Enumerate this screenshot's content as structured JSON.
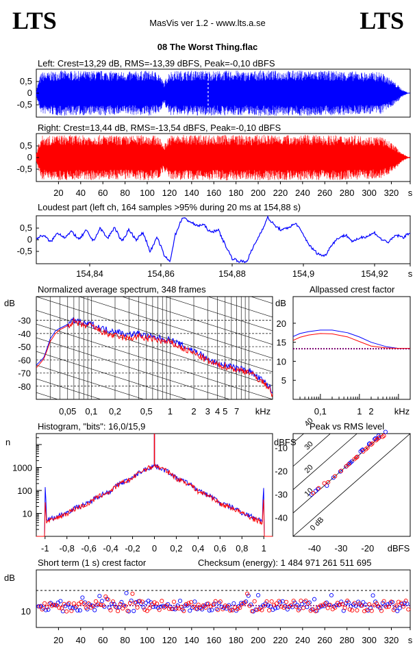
{
  "header": {
    "logo_left": "LTS",
    "logo_right": "LTS",
    "subtitle": "MasVis ver 1.2 - www.lts.a.se",
    "file_title": "08 The Worst Thing.flac"
  },
  "colors": {
    "left": "#0000ff",
    "right": "#ff0000",
    "dotted": "#7a0070"
  },
  "chart_data": [
    {
      "id": "left-waveform",
      "type": "line",
      "title": "Left: Crest=13,29 dB, RMS=-13,39 dBFS, Peak=-0,10 dBFS",
      "ylim": [
        -1,
        1
      ],
      "xlim": [
        0,
        337
      ],
      "yticks": [
        "0,5",
        "0",
        "-0,5"
      ],
      "ytick_values": [
        0.5,
        0,
        -0.5
      ],
      "marker_s": 154.88,
      "envelope": {
        "x": [
          0,
          3,
          5,
          10,
          20,
          40,
          60,
          80,
          100,
          110,
          115,
          120,
          140,
          155,
          160,
          180,
          190,
          200,
          220,
          240,
          260,
          280,
          300,
          310,
          320,
          326,
          330,
          335
        ],
        "amp": [
          0.15,
          0.7,
          0.92,
          0.9,
          0.98,
          0.95,
          0.97,
          0.92,
          0.97,
          0.92,
          0.45,
          0.95,
          0.97,
          0.98,
          0.95,
          0.98,
          0.92,
          0.98,
          0.97,
          0.98,
          0.96,
          0.95,
          0.9,
          0.92,
          0.6,
          0.35,
          0.15,
          0.02
        ]
      }
    },
    {
      "id": "right-waveform",
      "type": "line",
      "title": "Right: Crest=13,44 dB, RMS=-13,54 dBFS, Peak=-0,10 dBFS",
      "ylim": [
        -1,
        1
      ],
      "xlim": [
        0,
        337
      ],
      "yticks": [
        "0,5",
        "0",
        "-0,5"
      ],
      "ytick_values": [
        0.5,
        0,
        -0.5
      ],
      "xticks": [
        "20",
        "40",
        "60",
        "80",
        "100",
        "120",
        "140",
        "160",
        "180",
        "200",
        "220",
        "240",
        "260",
        "280",
        "300",
        "320",
        "s"
      ],
      "xtick_values": [
        20,
        40,
        60,
        80,
        100,
        120,
        140,
        160,
        180,
        200,
        220,
        240,
        260,
        280,
        300,
        320,
        337
      ],
      "envelope": {
        "x": [
          0,
          3,
          5,
          10,
          20,
          40,
          60,
          80,
          100,
          110,
          115,
          120,
          140,
          155,
          160,
          180,
          190,
          200,
          220,
          240,
          260,
          280,
          300,
          310,
          320,
          326,
          330,
          335
        ],
        "amp": [
          0.2,
          0.75,
          0.95,
          0.92,
          0.97,
          0.96,
          0.97,
          0.93,
          0.98,
          0.93,
          0.55,
          0.96,
          0.98,
          0.98,
          0.96,
          0.99,
          0.93,
          0.98,
          0.97,
          0.98,
          0.96,
          0.96,
          0.92,
          0.92,
          0.65,
          0.38,
          0.18,
          0.03
        ]
      }
    },
    {
      "id": "loudest-part",
      "type": "line",
      "title": "Loudest part (left  ch, 164 samples >95% during 20 ms at 154,88 s)",
      "xlim": [
        154.825,
        154.93
      ],
      "ylim": [
        -1,
        1
      ],
      "yticks": [
        "0,5",
        "0",
        "-0,5"
      ],
      "ytick_values": [
        0.5,
        0,
        -0.5
      ],
      "xticks": [
        "154,84",
        "154,86",
        "154,88",
        "154,9",
        "154,92",
        "s"
      ],
      "xtick_values": [
        154.84,
        154.86,
        154.88,
        154.9,
        154.92,
        154.93
      ],
      "series": [
        {
          "x": [
            154.825,
            154.827,
            154.829,
            154.831,
            154.833,
            154.835,
            154.837,
            154.839,
            154.841,
            154.843,
            154.845,
            154.847,
            154.849,
            154.851,
            154.853,
            154.855,
            154.857,
            154.859,
            154.861,
            154.8625,
            154.864,
            154.866,
            154.868,
            154.87,
            154.872,
            154.874,
            154.876,
            154.878,
            154.88,
            154.882,
            154.884,
            154.886,
            154.888,
            154.89,
            154.892,
            154.894,
            154.896,
            154.898,
            154.9,
            154.902,
            154.904,
            154.906,
            154.908,
            154.91,
            154.912,
            154.914,
            154.916,
            154.918,
            154.92,
            154.922,
            154.924,
            154.926,
            154.928,
            154.93
          ],
          "y": [
            0.05,
            0.2,
            -0.1,
            0.3,
            0.1,
            0.35,
            0.0,
            0.4,
            -0.05,
            0.5,
            0.05,
            0.55,
            -0.1,
            0.45,
            0.0,
            0.3,
            -0.5,
            0.1,
            -0.7,
            -0.95,
            0.2,
            0.95,
            0.8,
            0.6,
            0.65,
            0.3,
            0.45,
            -0.2,
            -0.8,
            -0.92,
            -0.95,
            -0.3,
            0.3,
            0.95,
            0.6,
            0.4,
            0.55,
            0.7,
            0.2,
            -0.3,
            -0.6,
            -0.7,
            -0.2,
            0.1,
            0.2,
            -0.1,
            0.1,
            0.15,
            0.3,
            0.0,
            -0.1,
            0.2,
            0.1,
            0.3
          ]
        }
      ]
    },
    {
      "id": "spectrum",
      "type": "line",
      "title": "Normalized average spectrum, 348 frames",
      "ylabel": "dB",
      "yticks": [
        "-30",
        "-40",
        "-50",
        "-60",
        "-70",
        "-80"
      ],
      "ytick_values": [
        -30,
        -40,
        -50,
        -60,
        -70,
        -80
      ],
      "ylim": [
        -90,
        -12
      ],
      "xlabel": "kHz",
      "xlim_khz": [
        0.02,
        20
      ],
      "log_x": true,
      "xticks": [
        "0,05",
        "0,1",
        "0,2",
        "0,5",
        "1",
        "2",
        "3",
        "4",
        "5",
        "7"
      ],
      "xtick_values": [
        0.05,
        0.1,
        0.2,
        0.5,
        1,
        2,
        3,
        4,
        5,
        7
      ],
      "series": [
        {
          "name": "left",
          "x": [
            0.02,
            0.025,
            0.03,
            0.035,
            0.04,
            0.05,
            0.06,
            0.07,
            0.08,
            0.1,
            0.12,
            0.15,
            0.2,
            0.25,
            0.3,
            0.4,
            0.5,
            0.6,
            0.8,
            1,
            1.5,
            2,
            2.5,
            3,
            4,
            5,
            6,
            7,
            8,
            10,
            12,
            15,
            18,
            20
          ],
          "y": [
            -64,
            -58,
            -44,
            -38,
            -36,
            -33,
            -30,
            -31,
            -33,
            -33,
            -35,
            -37,
            -38,
            -40,
            -41,
            -40,
            -42,
            -43,
            -44,
            -45,
            -50,
            -53,
            -56,
            -60,
            -63,
            -64,
            -65,
            -67,
            -67,
            -68,
            -72,
            -76,
            -80,
            -86
          ]
        },
        {
          "name": "right",
          "x": [
            0.02,
            0.025,
            0.03,
            0.035,
            0.04,
            0.05,
            0.06,
            0.07,
            0.08,
            0.1,
            0.12,
            0.15,
            0.2,
            0.25,
            0.3,
            0.4,
            0.5,
            0.6,
            0.8,
            1,
            1.5,
            2,
            2.5,
            3,
            4,
            5,
            6,
            7,
            8,
            10,
            12,
            15,
            18,
            20
          ],
          "y": [
            -66,
            -59,
            -46,
            -40,
            -37,
            -34,
            -31,
            -33,
            -34,
            -34,
            -37,
            -40,
            -42,
            -43,
            -44,
            -42,
            -44,
            -44,
            -46,
            -47,
            -52,
            -55,
            -58,
            -61,
            -64,
            -65,
            -66,
            -68,
            -68,
            -69,
            -73,
            -77,
            -81,
            -87
          ]
        }
      ]
    },
    {
      "id": "allpassed-crest",
      "type": "line",
      "title": "Allpassed crest factor",
      "ylabel": "dB",
      "yticks": [
        "20",
        "15",
        "10",
        "5"
      ],
      "ytick_values": [
        20,
        15,
        10,
        5
      ],
      "ylim": [
        0,
        27
      ],
      "xlabel": "kHz",
      "xticks": [
        "0,1",
        "1",
        "2"
      ],
      "xtick_values": [
        0.1,
        1,
        2
      ],
      "xlim_khz": [
        0.02,
        20
      ],
      "log_x": true,
      "reference_db": 13.3,
      "series": [
        {
          "name": "left",
          "x": [
            0.02,
            0.03,
            0.05,
            0.1,
            0.2,
            0.5,
            1,
            2,
            5,
            10,
            20
          ],
          "y": [
            16.5,
            17.3,
            17.8,
            18.2,
            18.2,
            17.5,
            16.4,
            15,
            13.8,
            13.4,
            13.4
          ]
        },
        {
          "name": "right",
          "x": [
            0.02,
            0.03,
            0.05,
            0.1,
            0.2,
            0.5,
            1,
            2,
            5,
            10,
            20
          ],
          "y": [
            15.5,
            16.3,
            16.9,
            17.3,
            17.2,
            16.4,
            15.2,
            14,
            13.5,
            13.4,
            13.4
          ]
        }
      ]
    },
    {
      "id": "histogram",
      "type": "line",
      "title": "Histogram, \"bits\": 16,0/15,9",
      "ylabel": "n",
      "log_y": true,
      "ylim": [
        1,
        30000
      ],
      "yticks": [
        "1000",
        "100",
        "10"
      ],
      "ytick_values": [
        1000,
        100,
        10
      ],
      "xlim": [
        -1.08,
        1.08
      ],
      "xticks": [
        "-1",
        "-0,8",
        "-0,6",
        "-0,4",
        "-0,2",
        "0",
        "0,2",
        "0,4",
        "0,6",
        "0,8",
        "1"
      ],
      "xtick_values": [
        -1,
        -0.8,
        -0.6,
        -0.4,
        -0.2,
        0,
        0.2,
        0.4,
        0.6,
        0.8,
        1
      ],
      "series": [
        {
          "name": "left",
          "x": [
            -1,
            -0.99,
            -0.9,
            -0.8,
            -0.6,
            -0.4,
            -0.2,
            0,
            0.2,
            0.4,
            0.6,
            0.8,
            0.9,
            0.99,
            1
          ],
          "y": [
            130,
            5,
            7,
            11,
            28,
            95,
            340,
            1200,
            340,
            95,
            28,
            11,
            7,
            5,
            130
          ],
          "peak_at_zero": 30000
        },
        {
          "name": "right",
          "x": [
            -1,
            -0.99,
            -0.9,
            -0.8,
            -0.6,
            -0.4,
            -0.2,
            0,
            0.2,
            0.4,
            0.6,
            0.8,
            0.9,
            0.99,
            1
          ],
          "y": [
            40,
            4,
            6,
            10,
            26,
            90,
            330,
            1200,
            330,
            90,
            26,
            10,
            6,
            4,
            40
          ],
          "peak_at_zero": 30000
        }
      ]
    },
    {
      "id": "peak-vs-rms",
      "type": "scatter",
      "title": "Peak vs RMS level",
      "ylabel": "dBFS",
      "xlabel": "dBFS",
      "xlim": [
        -48,
        -4
      ],
      "ylim": [
        -48,
        -4
      ],
      "xticks": [
        "-40",
        "-30",
        "-20"
      ],
      "xtick_values": [
        -40,
        -30,
        -20
      ],
      "yticks": [
        "-10",
        "-20",
        "-30",
        "-40"
      ],
      "ytick_values": [
        -10,
        -20,
        -30,
        -40
      ],
      "crest_lines": [
        "0 dB",
        "10",
        "20",
        "30",
        "40"
      ],
      "crest_values": [
        0,
        10,
        20,
        30,
        40
      ],
      "series": [
        {
          "name": "left",
          "x": [
            -42,
            -40,
            -38,
            -35,
            -33,
            -31,
            -29,
            -27,
            -26,
            -25,
            -24,
            -23,
            -22,
            -21,
            -20,
            -19,
            -18,
            -17,
            -16,
            -15,
            -14
          ],
          "y": [
            -31,
            -29,
            -27,
            -26,
            -23,
            -21,
            -19,
            -17,
            -16,
            -15,
            -14,
            -12,
            -11,
            -10,
            -9,
            -8,
            -7,
            -6,
            -5,
            -5,
            -4
          ]
        },
        {
          "name": "right",
          "x": [
            -41,
            -39,
            -37,
            -34,
            -32,
            -30,
            -28,
            -27,
            -25,
            -24,
            -23,
            -22,
            -21,
            -20,
            -19,
            -18,
            -17,
            -16,
            -15,
            -14,
            -13
          ],
          "y": [
            -30,
            -28,
            -26,
            -24,
            -22,
            -20,
            -18,
            -17,
            -15,
            -14,
            -13,
            -12,
            -11,
            -10,
            -9,
            -8,
            -7,
            -6,
            -5,
            -5,
            -4
          ]
        }
      ]
    },
    {
      "id": "short-term-crest",
      "type": "scatter",
      "title": "Short term (1 s) crest factor",
      "checksum_label": "Checksum (energy):  1 484 971 261 511 695",
      "ylabel": "dB",
      "yticks": [
        "10"
      ],
      "ytick_values": [
        10
      ],
      "ylim": [
        6,
        20
      ],
      "reference_db": 15,
      "xlim": [
        0,
        337
      ],
      "xticks": [
        "20",
        "40",
        "60",
        "80",
        "100",
        "120",
        "140",
        "160",
        "180",
        "200",
        "220",
        "240",
        "260",
        "280",
        "300",
        "320",
        "s"
      ],
      "xtick_values": [
        20,
        40,
        60,
        80,
        100,
        120,
        140,
        160,
        180,
        200,
        220,
        240,
        260,
        280,
        300,
        320,
        337
      ]
    }
  ]
}
